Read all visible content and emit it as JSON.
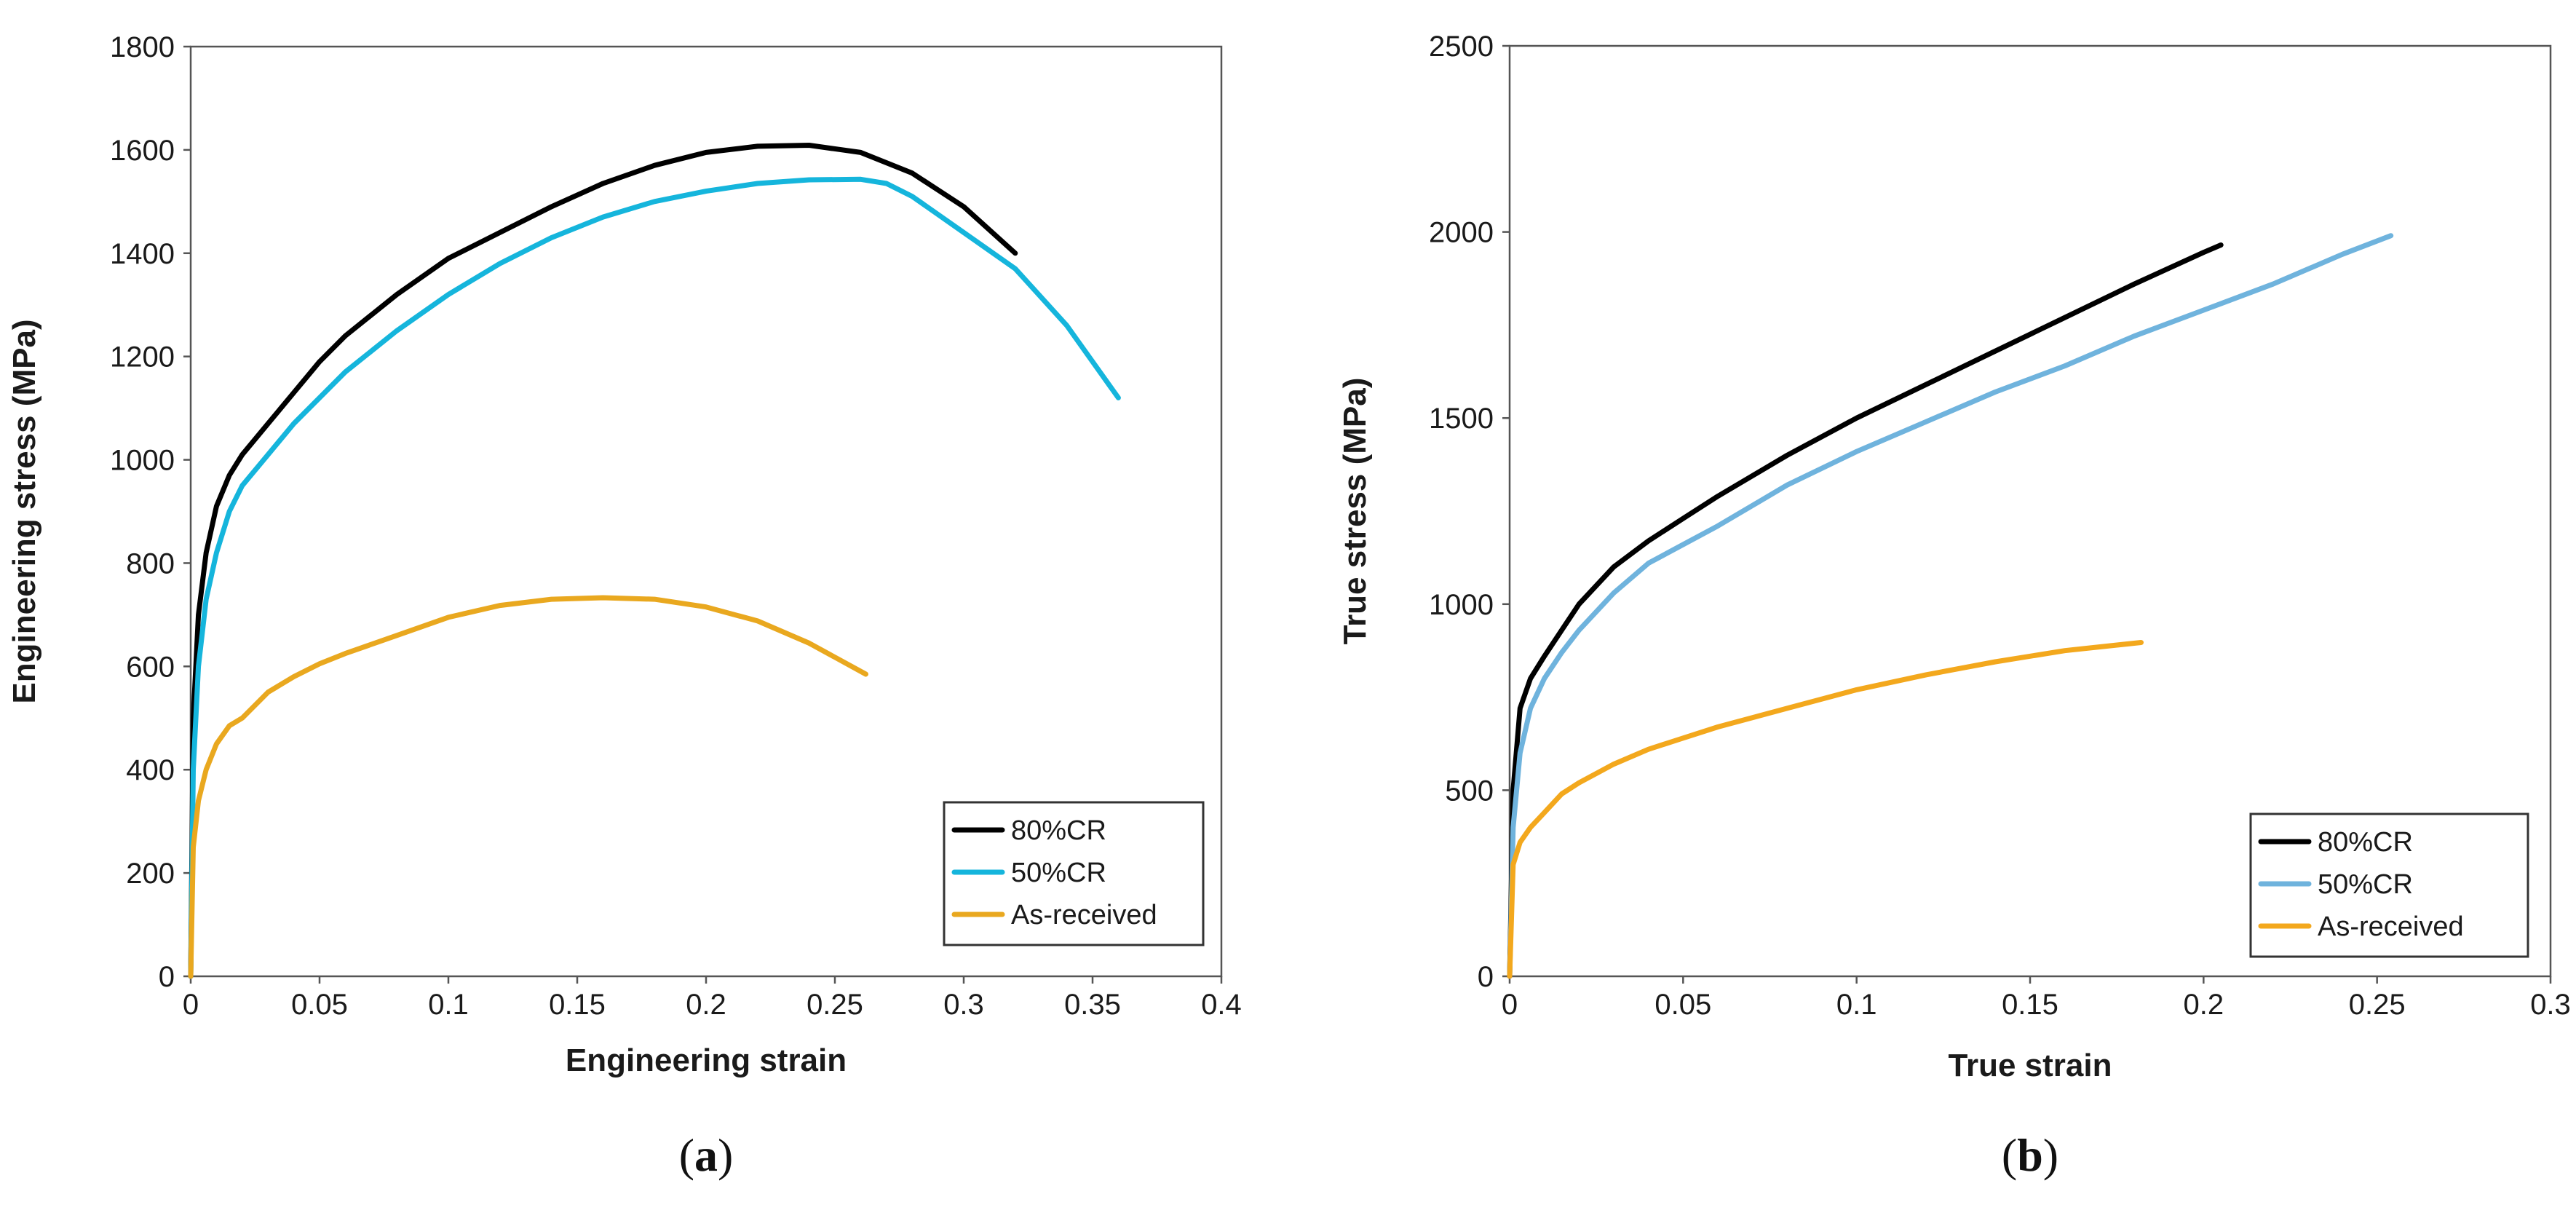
{
  "chart_data": [
    {
      "type": "line",
      "panel_label": "a",
      "title": "",
      "xlabel": "Engineering strain",
      "ylabel": "Engineering stress (MPa)",
      "xlim": [
        0,
        0.4
      ],
      "ylim": [
        0,
        1800
      ],
      "xticks": [
        0,
        0.05,
        0.1,
        0.15,
        0.2,
        0.25,
        0.3,
        0.35,
        0.4
      ],
      "xtick_labels": [
        "0",
        "0.05",
        "0.1",
        "0.15",
        "0.2",
        "0.25",
        "0.3",
        "0.35",
        "0.4"
      ],
      "yticks": [
        0,
        200,
        400,
        600,
        800,
        1000,
        1200,
        1400,
        1600,
        1800
      ],
      "ytick_labels": [
        "0",
        "200",
        "400",
        "600",
        "800",
        "1000",
        "1200",
        "1400",
        "1600",
        "1800"
      ],
      "grid": false,
      "legend_position": "bottom-right",
      "series": [
        {
          "name": "80%CR",
          "color": "#000000",
          "x": [
            0,
            0.001,
            0.003,
            0.006,
            0.01,
            0.015,
            0.02,
            0.03,
            0.04,
            0.05,
            0.06,
            0.08,
            0.1,
            0.12,
            0.14,
            0.16,
            0.18,
            0.2,
            0.22,
            0.24,
            0.26,
            0.28,
            0.3,
            0.32
          ],
          "y": [
            0,
            500,
            700,
            820,
            910,
            970,
            1010,
            1070,
            1130,
            1190,
            1240,
            1320,
            1390,
            1440,
            1490,
            1535,
            1570,
            1595,
            1607,
            1609,
            1595,
            1555,
            1490,
            1400
          ]
        },
        {
          "name": "50%CR",
          "color": "#15b5dc",
          "x": [
            0,
            0.001,
            0.003,
            0.006,
            0.01,
            0.015,
            0.02,
            0.03,
            0.04,
            0.05,
            0.06,
            0.08,
            0.1,
            0.12,
            0.14,
            0.16,
            0.18,
            0.2,
            0.22,
            0.24,
            0.26,
            0.27,
            0.28,
            0.3,
            0.32,
            0.34,
            0.36
          ],
          "y": [
            0,
            400,
            600,
            730,
            820,
            900,
            950,
            1010,
            1070,
            1120,
            1170,
            1250,
            1320,
            1380,
            1430,
            1470,
            1500,
            1520,
            1535,
            1542,
            1543,
            1535,
            1510,
            1440,
            1370,
            1260,
            1120
          ]
        },
        {
          "name": "As-received",
          "color": "#e9a81f",
          "x": [
            0,
            0.001,
            0.003,
            0.006,
            0.01,
            0.015,
            0.02,
            0.03,
            0.04,
            0.05,
            0.06,
            0.08,
            0.1,
            0.12,
            0.14,
            0.16,
            0.18,
            0.2,
            0.22,
            0.24,
            0.262
          ],
          "y": [
            0,
            250,
            340,
            400,
            450,
            485,
            500,
            550,
            580,
            605,
            625,
            660,
            695,
            718,
            730,
            733,
            730,
            715,
            688,
            645,
            585
          ]
        }
      ]
    },
    {
      "type": "line",
      "panel_label": "b",
      "title": "",
      "xlabel": "True strain",
      "ylabel": "True stress (MPa)",
      "xlim": [
        0,
        0.3
      ],
      "ylim": [
        0,
        2500
      ],
      "xticks": [
        0,
        0.05,
        0.1,
        0.15,
        0.2,
        0.25,
        0.3
      ],
      "xtick_labels": [
        "0",
        "0.05",
        "0.1",
        "0.15",
        "0.2",
        "0.25",
        "0.3"
      ],
      "yticks": [
        0,
        500,
        1000,
        1500,
        2000,
        2500
      ],
      "ytick_labels": [
        "0",
        "500",
        "1000",
        "1500",
        "2000",
        "2500"
      ],
      "grid": false,
      "legend_position": "bottom-right",
      "series": [
        {
          "name": "80%CR",
          "color": "#000000",
          "x": [
            0,
            0.001,
            0.003,
            0.006,
            0.01,
            0.015,
            0.02,
            0.03,
            0.04,
            0.05,
            0.06,
            0.08,
            0.1,
            0.12,
            0.14,
            0.16,
            0.18,
            0.2,
            0.205
          ],
          "y": [
            0,
            500,
            720,
            800,
            860,
            930,
            1000,
            1100,
            1170,
            1230,
            1290,
            1400,
            1500,
            1590,
            1680,
            1770,
            1860,
            1945,
            1965
          ]
        },
        {
          "name": "50%CR",
          "color": "#6fb3dd",
          "x": [
            0,
            0.001,
            0.003,
            0.006,
            0.01,
            0.015,
            0.02,
            0.03,
            0.04,
            0.05,
            0.06,
            0.08,
            0.1,
            0.12,
            0.14,
            0.16,
            0.18,
            0.2,
            0.22,
            0.24,
            0.254
          ],
          "y": [
            0,
            400,
            600,
            720,
            800,
            870,
            930,
            1030,
            1110,
            1160,
            1210,
            1320,
            1410,
            1490,
            1570,
            1640,
            1720,
            1790,
            1860,
            1940,
            1990
          ]
        },
        {
          "name": "As-received",
          "color": "#f3a81d",
          "x": [
            0,
            0.001,
            0.003,
            0.006,
            0.01,
            0.015,
            0.02,
            0.03,
            0.04,
            0.05,
            0.06,
            0.08,
            0.1,
            0.12,
            0.14,
            0.16,
            0.18,
            0.182
          ],
          "y": [
            0,
            300,
            360,
            400,
            440,
            490,
            520,
            570,
            610,
            640,
            670,
            720,
            770,
            810,
            845,
            875,
            895,
            897
          ]
        }
      ]
    }
  ]
}
